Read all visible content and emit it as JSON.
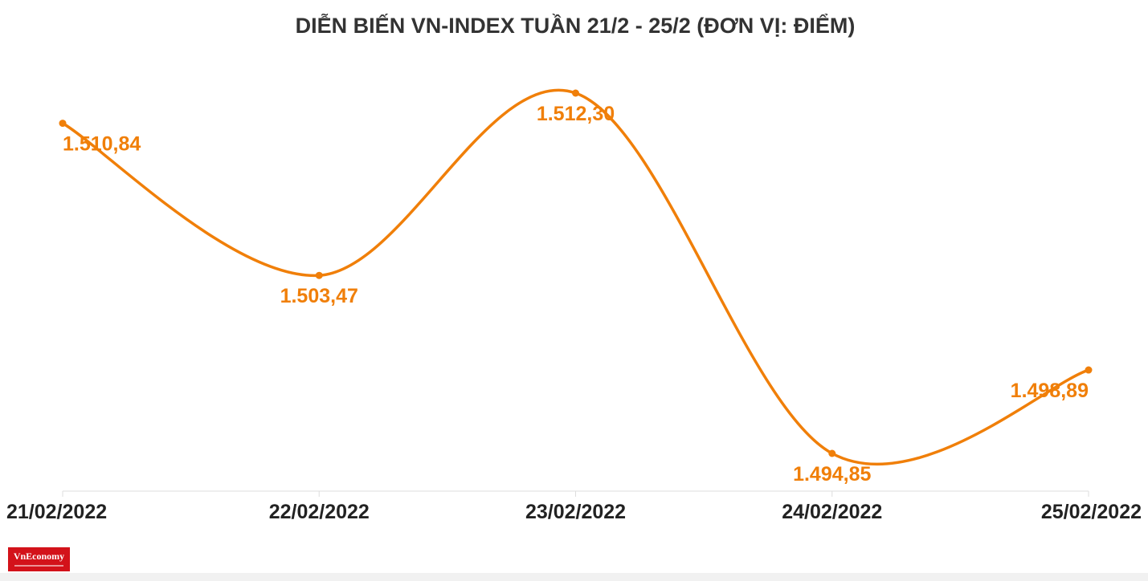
{
  "chart_data": {
    "type": "line",
    "title": "DIỄN BIẾN VN-INDEX TUẦN 21/2 - 25/2 (ĐƠN VỊ: ĐIỂM)",
    "categories": [
      "21/02/2022",
      "22/02/2022",
      "23/02/2022",
      "24/02/2022",
      "25/02/2022"
    ],
    "series": [
      {
        "values": [
          1510.84,
          1503.47,
          1512.3,
          1494.85,
          1498.89
        ],
        "labels": [
          "1.510,84",
          "1.503,47",
          "1.512,30",
          "1.494,85",
          "1.498,89"
        ],
        "color": "#f07f09"
      }
    ],
    "xlabel": "",
    "ylabel": "",
    "smooth": true,
    "grid": false,
    "legend": "none"
  },
  "logo": {
    "text": "VnEconomy",
    "color": "#d3121a"
  },
  "colors": {
    "axis": "#dddddd",
    "tick_text": "#222222",
    "title": "#333333"
  }
}
